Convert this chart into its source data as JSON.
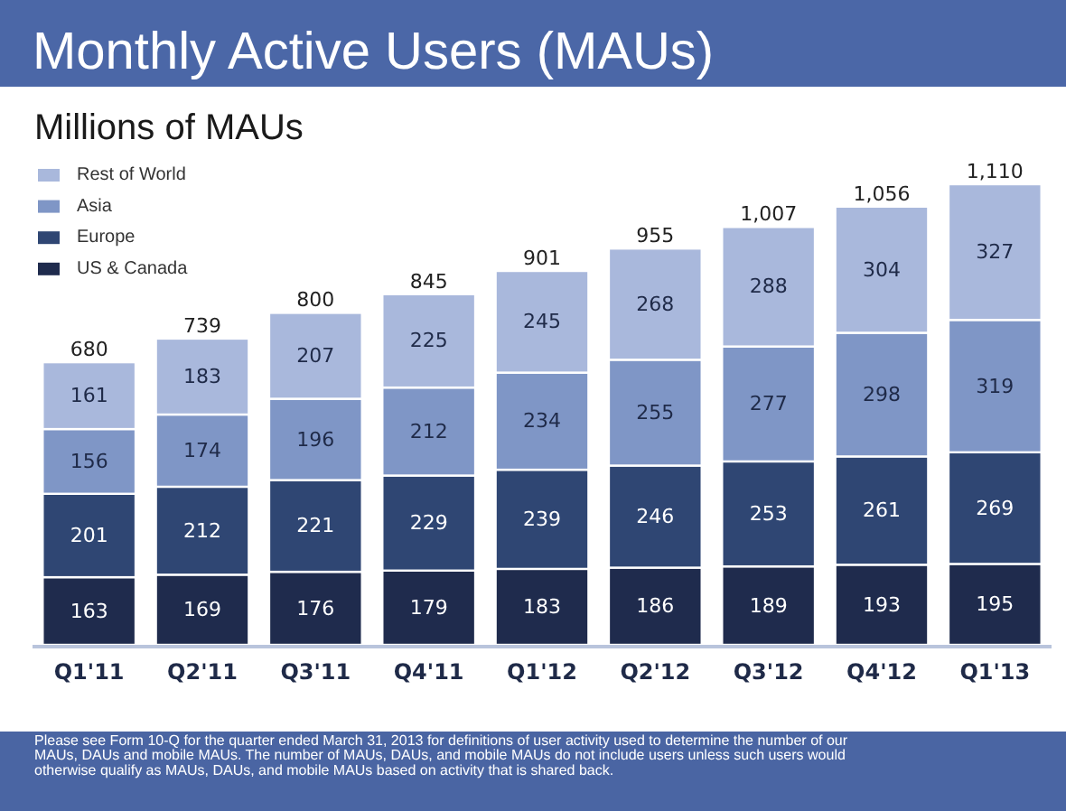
{
  "chart_data": {
    "type": "bar",
    "title": "Monthly Active Users (MAUs)",
    "subtitle": "Millions of MAUs",
    "categories": [
      "Q1'11",
      "Q2'11",
      "Q3'11",
      "Q4'11",
      "Q1'12",
      "Q2'12",
      "Q3'12",
      "Q4'12",
      "Q1'13"
    ],
    "stacked": true,
    "series": [
      {
        "name": "US & Canada",
        "color": "#1f2b4d",
        "values": [
          163,
          169,
          176,
          179,
          183,
          186,
          189,
          193,
          195
        ]
      },
      {
        "name": "Europe",
        "color": "#2f4673",
        "values": [
          201,
          212,
          221,
          229,
          239,
          246,
          253,
          261,
          269
        ]
      },
      {
        "name": "Asia",
        "color": "#7f96c6",
        "values": [
          156,
          174,
          196,
          212,
          234,
          255,
          277,
          298,
          319
        ]
      },
      {
        "name": "Rest of World",
        "color": "#a9b8dc",
        "values": [
          161,
          183,
          207,
          225,
          245,
          268,
          288,
          304,
          327
        ]
      }
    ],
    "data_labels": true,
    "totals": [
      "680",
      "739",
      "800",
      "845",
      "901",
      "955",
      "1,007",
      "1,056",
      "1,110"
    ],
    "legend": "top left",
    "annotations": [
      "Please see Form 10-Q for the quarter ended March 31, 2013 for definitions of user activity used to determine the number of our MAUs, DAUs and mobile MAUs. The number of MAUs, DAUs, and mobile MAUs do not include users unless such users would otherwise qualify as MAUs, DAUs, and mobile MAUs based on activity that is shared back."
    ]
  }
}
